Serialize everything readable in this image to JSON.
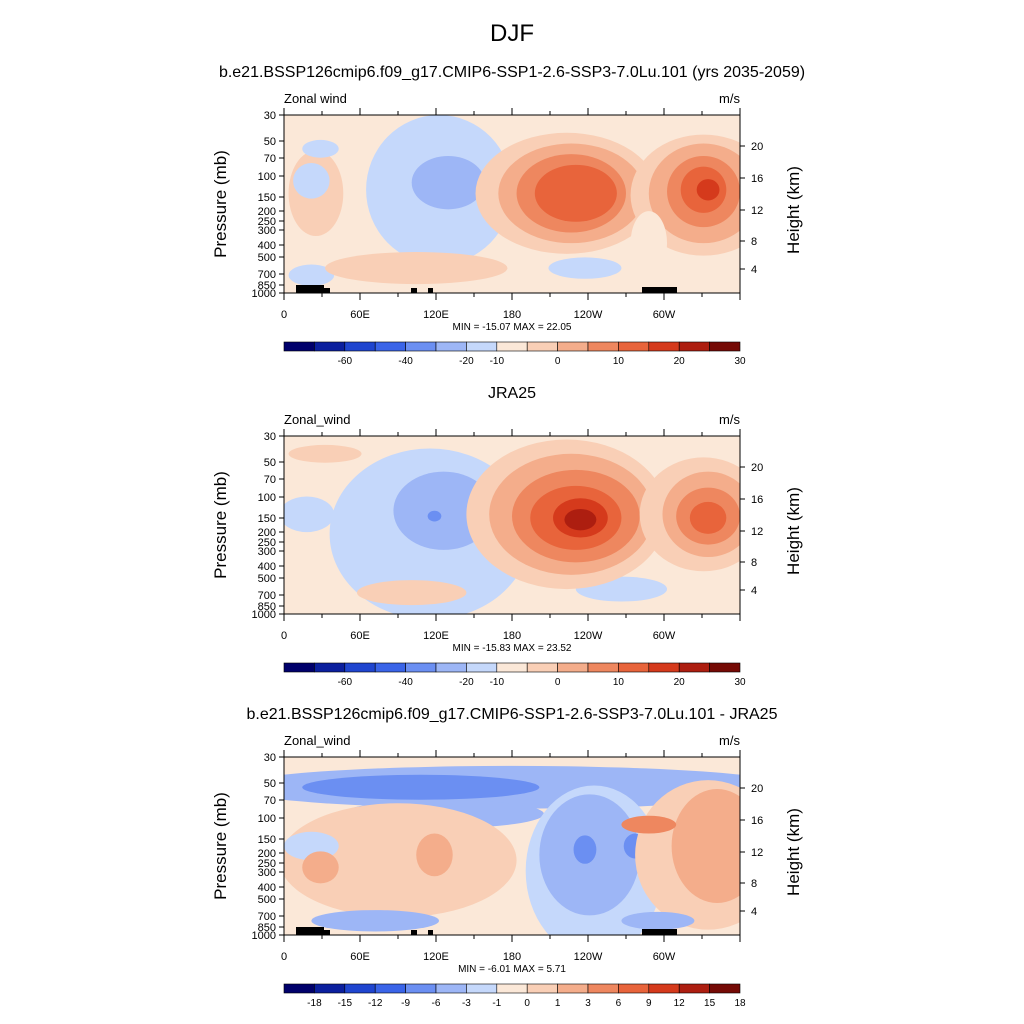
{
  "figure_title": "DJF",
  "colors": {
    "full_scale": [
      "#00006b",
      "#0b1f9e",
      "#1f45cf",
      "#3a64e8",
      "#6b8ff2",
      "#9db6f6",
      "#c5d8fb",
      "#fbe8d8",
      "#f9cfb6",
      "#f4ad8b",
      "#ee875f",
      "#e8643b",
      "#d53a1c",
      "#ad1e10",
      "#750a05"
    ],
    "diff_scale": [
      "#00006b",
      "#0b1f9e",
      "#1f45cf",
      "#3a64e8",
      "#6b8ff2",
      "#9db6f6",
      "#c5d8fb",
      "#fbe8d8",
      "#f9cfb6",
      "#f4ad8b",
      "#ee875f",
      "#e8643b",
      "#d53a1c",
      "#ad1e10",
      "#750a05"
    ],
    "topography": "#000000"
  },
  "chart_data": [
    {
      "type": "heatmap",
      "title": "b.e21.BSSP126cmip6.f09_g17.CMIP6-SSP1-2.6-SSP3-7.0Lu.101 (yrs 2035-2059)",
      "left_label": "Zonal wind",
      "units": "m/s",
      "ylabel": "Pressure (mb)",
      "ylabel_right": "Height (km)",
      "x_ticks": [
        "0",
        "60E",
        "120E",
        "180",
        "120W",
        "60W"
      ],
      "y_ticks": [
        "30",
        "50",
        "70",
        "100",
        "150",
        "200",
        "250",
        "300",
        "400",
        "500",
        "700",
        "850",
        "1000"
      ],
      "y_ticks_right": [
        "20",
        "16",
        "12",
        "8",
        "4"
      ],
      "stats": "MIN = -15.07  MAX =  22.05",
      "min": -15.07,
      "max": 22.05,
      "colorbar_levels": [
        "-60",
        "-40",
        "-20",
        "-10",
        "0",
        "10",
        "20",
        "30"
      ],
      "topography": true
    },
    {
      "type": "heatmap",
      "title": "JRA25",
      "left_label": "Zonal_wind",
      "units": "m/s",
      "ylabel": "Pressure (mb)",
      "ylabel_right": "Height (km)",
      "x_ticks": [
        "0",
        "60E",
        "120E",
        "180",
        "120W",
        "60W"
      ],
      "y_ticks": [
        "30",
        "50",
        "70",
        "100",
        "150",
        "200",
        "250",
        "300",
        "400",
        "500",
        "700",
        "850",
        "1000"
      ],
      "y_ticks_right": [
        "20",
        "16",
        "12",
        "8",
        "4"
      ],
      "stats": "MIN = -15.83  MAX =  23.52",
      "min": -15.83,
      "max": 23.52,
      "colorbar_levels": [
        "-60",
        "-40",
        "-20",
        "-10",
        "0",
        "10",
        "20",
        "30"
      ],
      "topography": false
    },
    {
      "type": "heatmap",
      "title": "b.e21.BSSP126cmip6.f09_g17.CMIP6-SSP1-2.6-SSP3-7.0Lu.101 - JRA25",
      "left_label": "Zonal_wind",
      "units": "m/s",
      "ylabel": "Pressure (mb)",
      "ylabel_right": "Height (km)",
      "x_ticks": [
        "0",
        "60E",
        "120E",
        "180",
        "120W",
        "60W"
      ],
      "y_ticks": [
        "30",
        "50",
        "70",
        "100",
        "150",
        "200",
        "250",
        "300",
        "400",
        "500",
        "700",
        "850",
        "1000"
      ],
      "y_ticks_right": [
        "20",
        "16",
        "12",
        "8",
        "4"
      ],
      "stats": "MIN =  -6.01  MAX =   5.71",
      "min": -6.01,
      "max": 5.71,
      "colorbar_levels": [
        "-18",
        "-15",
        "-12",
        "-9",
        "-6",
        "-3",
        "-1",
        "0",
        "1",
        "3",
        "6",
        "9",
        "12",
        "15",
        "18"
      ],
      "topography": true
    }
  ]
}
